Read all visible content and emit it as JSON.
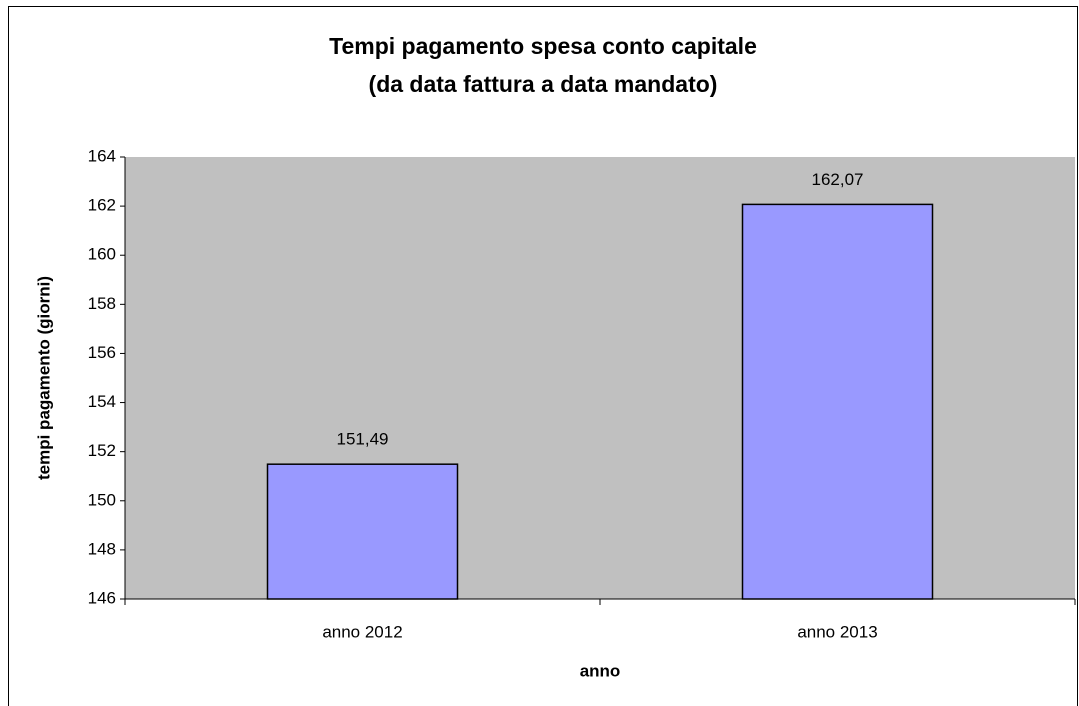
{
  "chart_data": {
    "type": "bar",
    "title": "Tempi pagamento spesa conto capitale",
    "subtitle": "(da data fattura a data mandato)",
    "x_label": "anno",
    "y_label": "tempi pagamento (giorni)",
    "categories": [
      "anno 2012",
      "anno 2013"
    ],
    "values": [
      151.49,
      162.07
    ],
    "value_labels": [
      "151,49",
      "162,07"
    ],
    "color": "#9999ff",
    "ylim": [
      146,
      164
    ],
    "yticks": [
      146,
      148,
      150,
      152,
      154,
      156,
      158,
      160,
      162,
      164
    ],
    "grid": false
  }
}
